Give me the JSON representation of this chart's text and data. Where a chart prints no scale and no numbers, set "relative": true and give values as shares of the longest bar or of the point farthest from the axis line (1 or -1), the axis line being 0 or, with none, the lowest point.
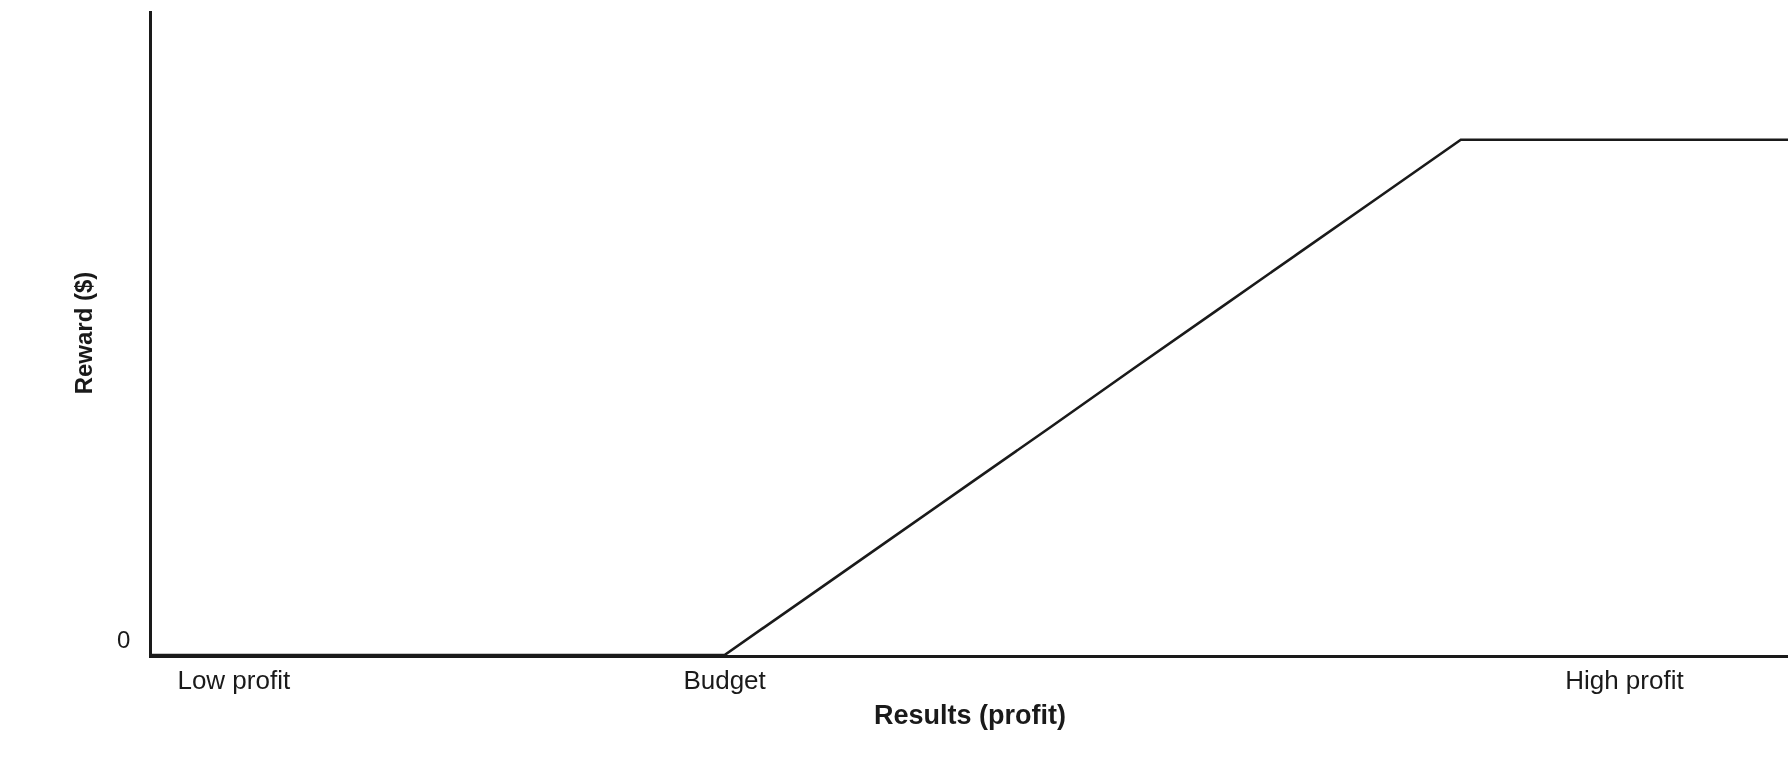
{
  "chart_data": {
    "type": "line",
    "relative": true,
    "xlabel": "Results (profit)",
    "ylabel": "Reward ($)",
    "categories": [
      null,
      "Low profit",
      null,
      null,
      null,
      null,
      null,
      "Budget",
      null,
      null,
      null,
      null,
      null,
      null,
      null,
      null,
      null,
      null,
      "High profit",
      null,
      null
    ],
    "series": [
      {
        "color": "#1a1a1a",
        "values": [
          0,
          0,
          0,
          0,
          0,
          0,
          0,
          0,
          0.111,
          0.222,
          0.333,
          0.444,
          0.556,
          0.667,
          0.778,
          0.889,
          1,
          1,
          1,
          1,
          1
        ]
      }
    ],
    "annotations": [
      "0"
    ],
    "marker": "none",
    "line_style": "solid"
  }
}
